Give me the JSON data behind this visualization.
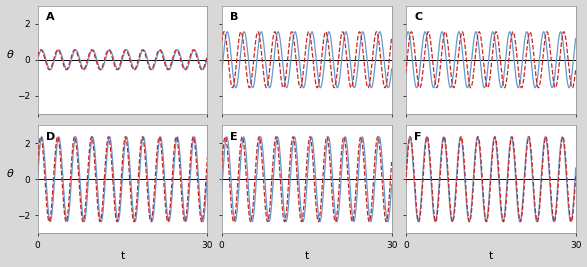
{
  "t_start": 0,
  "t_end": 30,
  "n_points": 3000,
  "panel_configs": [
    {
      "label": "A",
      "true_amp": 0.55,
      "true_freq": 2.1,
      "true_phase": 0.0,
      "pred_amp": 0.55,
      "pred_freq": 2.1,
      "pred_phase": 0.35
    },
    {
      "label": "B",
      "true_amp": 1.55,
      "true_freq": 2.1,
      "true_phase": -0.5,
      "pred_amp": 1.55,
      "pred_freq": 2.1,
      "pred_phase": 0.7
    },
    {
      "label": "C",
      "true_amp": 1.55,
      "true_freq": 2.1,
      "true_phase": 0.7,
      "pred_amp": 1.55,
      "pred_freq": 2.1,
      "pred_phase": -0.5
    },
    {
      "label": "D",
      "true_amp": 2.35,
      "true_freq": 2.1,
      "true_phase": 0.0,
      "pred_amp": 2.35,
      "pred_freq": 2.1,
      "pred_phase": 0.4
    },
    {
      "label": "E",
      "true_amp": 2.35,
      "true_freq": 2.1,
      "true_phase": -0.3,
      "pred_amp": 2.35,
      "pred_freq": 2.1,
      "pred_phase": 0.25
    },
    {
      "label": "F",
      "true_amp": 2.35,
      "true_freq": 2.1,
      "true_phase": 0.1,
      "pred_amp": 2.35,
      "pred_freq": 2.1,
      "pred_phase": -0.1
    }
  ],
  "ylim": [
    -3.0,
    3.0
  ],
  "yticks": [
    -2,
    0,
    2
  ],
  "xlim": [
    0,
    30
  ],
  "xticks": [
    0,
    30
  ],
  "true_color": "#6699cc",
  "pred_color": "#cc2222",
  "true_lw": 0.9,
  "pred_lw": 0.9,
  "hline_color": "black",
  "hline_lw": 0.7,
  "label_fontsize": 8,
  "tick_fontsize": 6.5,
  "axis_label_fontsize": 8,
  "plot_bg_color": "#ffffff",
  "fig_bg_color": "#d8d8d8"
}
